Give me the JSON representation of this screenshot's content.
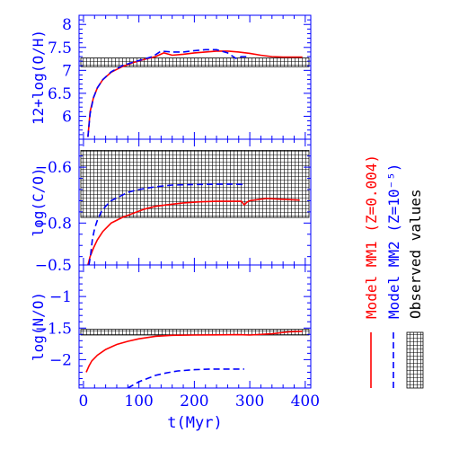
{
  "colors": {
    "axis": "#0000ff",
    "mm1": "#ff0000",
    "mm2": "#0000ff",
    "observed": "#000000"
  },
  "chart_data": [
    {
      "type": "line",
      "ylabel": "12+log(O/H)",
      "xlim": [
        -8,
        410
      ],
      "ylim": [
        5.5,
        8.2
      ],
      "yticks": [
        6,
        6.5,
        7,
        7.5,
        8
      ],
      "yticklabels": [
        "6",
        "6.5",
        "7",
        "7.5",
        "8"
      ],
      "observed_band": [
        7.08,
        7.27
      ],
      "series": [
        {
          "name": "Model MM1 (Z=0.004)",
          "style": "solid",
          "x": [
            8,
            12,
            18,
            25,
            35,
            50,
            70,
            90,
            110,
            130,
            145,
            160,
            180,
            200,
            220,
            240,
            260,
            280,
            300,
            320,
            340,
            360,
            380,
            395
          ],
          "y": [
            5.55,
            6.1,
            6.4,
            6.62,
            6.8,
            6.96,
            7.08,
            7.17,
            7.24,
            7.3,
            7.38,
            7.33,
            7.35,
            7.38,
            7.4,
            7.42,
            7.42,
            7.4,
            7.37,
            7.33,
            7.3,
            7.29,
            7.29,
            7.29
          ]
        },
        {
          "name": "Model MM2 (Z=10⁻⁵)",
          "style": "dashed",
          "x": [
            8,
            12,
            18,
            25,
            35,
            50,
            70,
            90,
            110,
            125,
            140,
            160,
            180,
            200,
            220,
            240,
            260,
            275,
            285,
            295
          ],
          "y": [
            5.55,
            6.05,
            6.4,
            6.62,
            6.8,
            6.97,
            7.1,
            7.18,
            7.25,
            7.3,
            7.42,
            7.4,
            7.4,
            7.43,
            7.45,
            7.45,
            7.38,
            7.26,
            7.3,
            7.3
          ]
        }
      ]
    },
    {
      "type": "line",
      "ylabel": "log(C/O)",
      "xlim": [
        -8,
        410
      ],
      "ylim": [
        -0.95,
        -0.5
      ],
      "yticks": [
        -0.8,
        -0.6
      ],
      "yticklabels": [
        "−0.8",
        "−0.6"
      ],
      "observed_band": [
        -0.78,
        -0.54
      ],
      "series": [
        {
          "name": "Model MM1 (Z=0.004)",
          "style": "solid",
          "x": [
            8,
            12,
            18,
            25,
            35,
            50,
            70,
            90,
            110,
            130,
            150,
            180,
            210,
            240,
            270,
            285,
            290,
            295,
            300,
            330,
            360,
            390
          ],
          "y": [
            -0.95,
            -0.92,
            -0.89,
            -0.86,
            -0.83,
            -0.8,
            -0.78,
            -0.765,
            -0.75,
            -0.74,
            -0.735,
            -0.728,
            -0.724,
            -0.722,
            -0.722,
            -0.722,
            -0.735,
            -0.725,
            -0.72,
            -0.712,
            -0.715,
            -0.718
          ]
        },
        {
          "name": "Model MM2 (Z=10⁻⁵)",
          "style": "dashed",
          "x": [
            10,
            13,
            16,
            20,
            25,
            32,
            40,
            50,
            65,
            80,
            100,
            130,
            160,
            200,
            240,
            270,
            290
          ],
          "y": [
            -0.95,
            -0.91,
            -0.86,
            -0.82,
            -0.79,
            -0.76,
            -0.74,
            -0.72,
            -0.705,
            -0.69,
            -0.68,
            -0.67,
            -0.664,
            -0.662,
            -0.661,
            -0.661,
            -0.662
          ]
        }
      ]
    },
    {
      "type": "line",
      "ylabel": "log(N/O)",
      "xlabel": "t(Myr)",
      "xlim": [
        -8,
        410
      ],
      "ylim": [
        -2.45,
        -0.5
      ],
      "xticks": [
        0,
        100,
        200,
        300,
        400
      ],
      "xticklabels": [
        "0",
        "100",
        "200",
        "300",
        "400"
      ],
      "yticks": [
        -2,
        -1.5,
        -1,
        -0.5
      ],
      "yticklabels": [
        "−2",
        "−1.5",
        "−1",
        "−0.5"
      ],
      "observed_band": [
        -1.61,
        -1.52
      ],
      "series": [
        {
          "name": "Model MM1 (Z=0.004)",
          "style": "solid",
          "x": [
            5,
            10,
            15,
            25,
            40,
            60,
            80,
            100,
            130,
            160,
            200,
            240,
            280,
            300,
            340,
            370,
            395
          ],
          "y": [
            -2.2,
            -2.1,
            -2.02,
            -1.93,
            -1.84,
            -1.76,
            -1.71,
            -1.67,
            -1.63,
            -1.615,
            -1.61,
            -1.607,
            -1.605,
            -1.61,
            -1.59,
            -1.56,
            -1.55
          ]
        },
        {
          "name": "Model MM2 (Z=10⁻⁵)",
          "style": "dashed",
          "x": [
            80,
            90,
            100,
            115,
            130,
            150,
            170,
            200,
            230,
            260,
            290
          ],
          "y": [
            -2.45,
            -2.4,
            -2.35,
            -2.3,
            -2.25,
            -2.21,
            -2.18,
            -2.16,
            -2.15,
            -2.15,
            -2.15
          ]
        }
      ]
    }
  ],
  "legend": {
    "items": [
      {
        "label": "Model MM1 (Z=0.004)",
        "style": "solid",
        "color": "#ff0000"
      },
      {
        "label": "Model MM2 (Z=10⁻⁵)",
        "style": "dashed",
        "color": "#0000ff"
      },
      {
        "label": "Observed values",
        "style": "hatch",
        "color": "#000000"
      }
    ]
  }
}
